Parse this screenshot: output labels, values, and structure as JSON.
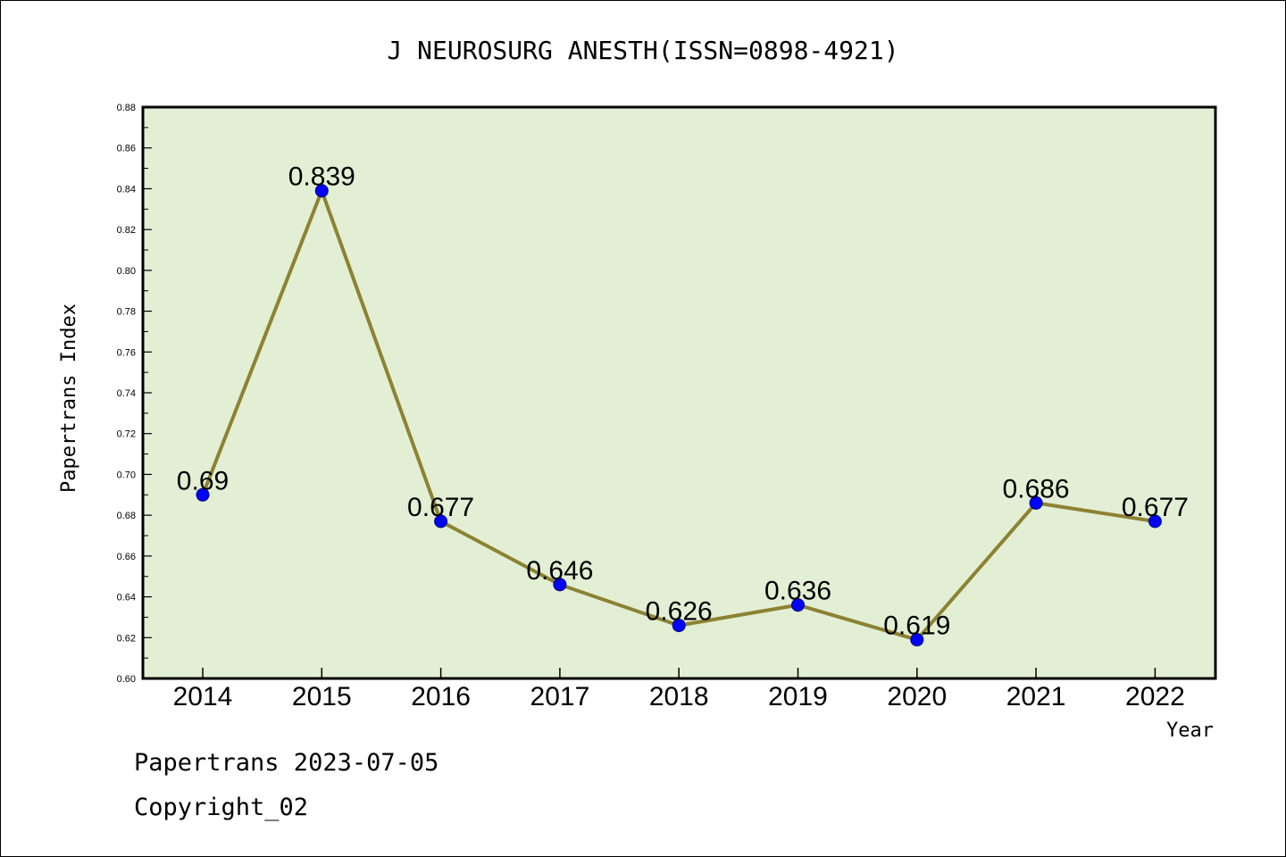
{
  "chart_data": {
    "type": "line",
    "title": "J NEUROSURG ANESTH(ISSN=0898-4921)",
    "xlabel": "Year",
    "ylabel": "Papertrans Index",
    "categories": [
      "2014",
      "2015",
      "2016",
      "2017",
      "2018",
      "2019",
      "2020",
      "2021",
      "2022"
    ],
    "values": [
      0.69,
      0.839,
      0.677,
      0.646,
      0.626,
      0.636,
      0.619,
      0.686,
      0.677
    ],
    "value_labels": [
      "0.69",
      "0.839",
      "0.677",
      "0.646",
      "0.626",
      "0.636",
      "0.619",
      "0.686",
      "0.677"
    ],
    "ylim": [
      0.6,
      0.88
    ],
    "yticks": [
      "0.60",
      "0.62",
      "0.64",
      "0.66",
      "0.68",
      "0.70",
      "0.72",
      "0.74",
      "0.76",
      "0.78",
      "0.80",
      "0.82",
      "0.84",
      "0.86",
      "0.88"
    ],
    "grid": false,
    "colors": {
      "plot_background": "#e2efd4",
      "line": "#8c8232",
      "marker": "#0000ff"
    }
  },
  "footer": {
    "line1": "Papertrans 2023-07-05",
    "line2": "Copyright_02"
  }
}
